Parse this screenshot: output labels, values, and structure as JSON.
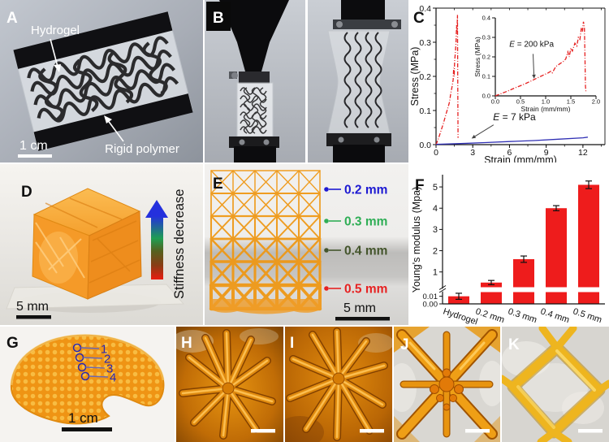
{
  "panels": {
    "a": {
      "letter": "A",
      "hydrogel_label": "Hydrogel",
      "rigid_polymer_label": "Rigid polymer",
      "scale_bar": "1 cm"
    },
    "b": {
      "letter": "B"
    },
    "c": {
      "letter": "C"
    },
    "d": {
      "letter": "D",
      "gradient_label": "Stiffness decrease",
      "scale_bar": "5 mm"
    },
    "e": {
      "letter": "E",
      "callouts": [
        {
          "label": "0.2 mm",
          "color": "#1d19d2"
        },
        {
          "label": "0.3 mm",
          "color": "#2fae56"
        },
        {
          "label": "0.4 mm",
          "color": "#44552c"
        },
        {
          "label": "0.5 mm",
          "color": "#e62222"
        }
      ],
      "scale_bar": "5 mm"
    },
    "f": {
      "letter": "F"
    },
    "g": {
      "letter": "G",
      "markers": [
        "1",
        "2",
        "3",
        "4"
      ],
      "marker_color": "#2b28b0",
      "scale_bar": "1 cm"
    },
    "h": {
      "letter": "H"
    },
    "i": {
      "letter": "I"
    },
    "j": {
      "letter": "J"
    },
    "k": {
      "letter": "K"
    }
  },
  "chart_data": [
    {
      "id": "panel-c-stress-strain",
      "type": "line",
      "xlabel": "Strain (mm/mm)",
      "ylabel": "Stress (MPa)",
      "xlim": [
        0,
        13.8
      ],
      "ylim": [
        0,
        0.4
      ],
      "xticks": [
        {
          "v": 0,
          "l": "0"
        },
        {
          "v": 3,
          "l": "3"
        },
        {
          "v": 6,
          "l": "6"
        },
        {
          "v": 9,
          "l": "9"
        },
        {
          "v": 12,
          "l": "12"
        }
      ],
      "yticks": [
        {
          "v": 0,
          "l": "0.0"
        },
        {
          "v": 0.1,
          "l": "0.1"
        },
        {
          "v": 0.2,
          "l": "0.2"
        },
        {
          "v": 0.3,
          "l": "0.3"
        },
        {
          "v": 0.4,
          "l": "0.4"
        }
      ],
      "xminor_step": 1.5,
      "yminor_step": 0.05,
      "series": [
        {
          "name": "hydrogel with rigid polymer reinforcement",
          "color": "#e62020",
          "style": "dashdot",
          "points": [
            [
              0,
              0
            ],
            [
              0.2,
              0.018
            ],
            [
              0.4,
              0.04
            ],
            [
              0.6,
              0.062
            ],
            [
              0.8,
              0.088
            ],
            [
              1,
              0.112
            ],
            [
              1.1,
              0.125
            ],
            [
              1.2,
              0.15
            ],
            [
              1.3,
              0.168
            ],
            [
              1.4,
              0.19
            ],
            [
              1.44,
              0.225
            ],
            [
              1.48,
              0.2
            ],
            [
              1.52,
              0.245
            ],
            [
              1.58,
              0.27
            ],
            [
              1.63,
              0.3
            ],
            [
              1.68,
              0.35
            ],
            [
              1.71,
              0.33
            ],
            [
              1.75,
              0.38
            ],
            [
              1.78,
              0.15
            ],
            [
              1.8,
              0.02
            ]
          ]
        },
        {
          "name": "pure hydrogel",
          "color": "#3030b4",
          "style": "solid",
          "points": [
            [
              0,
              0.001
            ],
            [
              2,
              0.003
            ],
            [
              4,
              0.006
            ],
            [
              6,
              0.009
            ],
            [
              8,
              0.012
            ],
            [
              10,
              0.016
            ],
            [
              12,
              0.02
            ],
            [
              12.4,
              0.022
            ]
          ]
        }
      ],
      "annotations": [
        {
          "text": "E = 7 kPa",
          "text_xy": [
            6.4,
            0.072
          ],
          "arrow_from_xy": [
            4.7,
            0.058
          ],
          "arrow_to_xy": [
            2.9,
            0.018
          ]
        }
      ],
      "inset": {
        "xlabel": "Strain (mm/mm)",
        "ylabel": "Stress (MPa)",
        "xlim": [
          0,
          2
        ],
        "ylim": [
          0,
          0.4
        ],
        "xticks": [
          {
            "v": 0,
            "l": "0.0"
          },
          {
            "v": 0.5,
            "l": "0.5"
          },
          {
            "v": 1,
            "l": "1.0"
          },
          {
            "v": 1.5,
            "l": "1.5"
          },
          {
            "v": 2,
            "l": "2.0"
          }
        ],
        "yticks": [
          {
            "v": 0,
            "l": "0.0"
          },
          {
            "v": 0.1,
            "l": "0.1"
          },
          {
            "v": 0.2,
            "l": "0.2"
          },
          {
            "v": 0.3,
            "l": "0.3"
          },
          {
            "v": 0.4,
            "l": "0.4"
          }
        ],
        "series": [
          {
            "name": "hydrogel with rigid polymer reinforcement",
            "color": "#e62020",
            "style": "dashdot",
            "points": [
              [
                0,
                0
              ],
              [
                0.1,
                0.01
              ],
              [
                0.2,
                0.02
              ],
              [
                0.3,
                0.031
              ],
              [
                0.4,
                0.042
              ],
              [
                0.5,
                0.052
              ],
              [
                0.6,
                0.063
              ],
              [
                0.7,
                0.075
              ],
              [
                0.8,
                0.088
              ],
              [
                0.9,
                0.1
              ],
              [
                1,
                0.112
              ],
              [
                1.05,
                0.118
              ],
              [
                1.1,
                0.126
              ],
              [
                1.13,
                0.118
              ],
              [
                1.2,
                0.15
              ],
              [
                1.3,
                0.168
              ],
              [
                1.36,
                0.178
              ],
              [
                1.4,
                0.19
              ],
              [
                1.44,
                0.226
              ],
              [
                1.47,
                0.2
              ],
              [
                1.5,
                0.246
              ],
              [
                1.53,
                0.23
              ],
              [
                1.58,
                0.27
              ],
              [
                1.62,
                0.256
              ],
              [
                1.65,
                0.3
              ],
              [
                1.68,
                0.29
              ],
              [
                1.71,
                0.35
              ],
              [
                1.73,
                0.33
              ],
              [
                1.75,
                0.38
              ],
              [
                1.77,
                0.355
              ],
              [
                1.78,
                0.2
              ],
              [
                1.79,
                0.05
              ],
              [
                1.8,
                0.02
              ]
            ]
          }
        ],
        "annotations": [
          {
            "text": "E = 200 kPa",
            "text_xy": [
              0.72,
              0.252
            ],
            "arrow_from_xy": [
              0.75,
              0.215
            ],
            "arrow_to_xy": [
              0.77,
              0.088
            ]
          }
        ]
      }
    },
    {
      "id": "panel-f-youngs-modulus",
      "type": "bar",
      "ylabel": "Young's modulus (Mpa)",
      "categories": [
        "Hydrogel",
        "0.2 mm",
        "0.3 mm",
        "0.4 mm",
        "0.5 mm"
      ],
      "values": [
        0.01,
        0.5,
        1.6,
        4.0,
        5.1
      ],
      "errors": [
        0.004,
        0.1,
        0.15,
        0.12,
        0.18
      ],
      "bar_color": "#ee1c1c",
      "axis_break": true,
      "upper_ticks": [
        {
          "v": 1,
          "l": "1"
        },
        {
          "v": 2,
          "l": "2"
        },
        {
          "v": 3,
          "l": "3"
        },
        {
          "v": 4,
          "l": "4"
        },
        {
          "v": 5,
          "l": "5"
        }
      ],
      "lower_ticks": [
        {
          "v": 0,
          "l": "0.00"
        },
        {
          "v": 0.01,
          "l": "0.01"
        }
      ],
      "upper_range": [
        0.3,
        5.5
      ],
      "lower_range": [
        0,
        0.015
      ]
    }
  ]
}
